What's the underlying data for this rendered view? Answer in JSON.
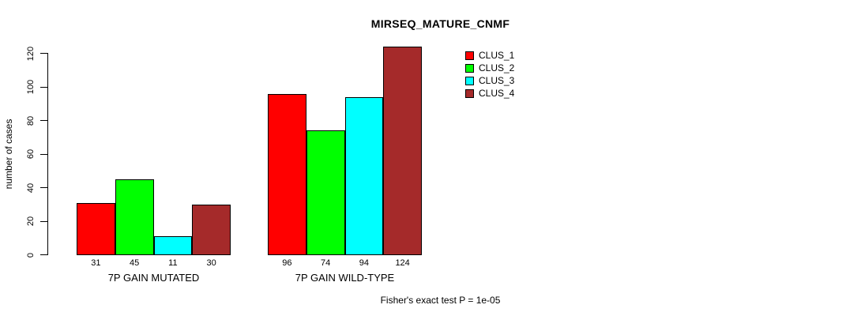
{
  "chart_data": {
    "type": "bar",
    "title": "MIRSEQ_MATURE_CNMF",
    "ylabel": "number of cases",
    "xlabel": "",
    "ylim": [
      0,
      120
    ],
    "yticks": [
      0,
      20,
      40,
      60,
      80,
      100,
      120
    ],
    "grid": false,
    "legend_position": "top-right-inside",
    "categories": [
      "7P GAIN MUTATED",
      "7P GAIN WILD-TYPE"
    ],
    "series": [
      {
        "name": "CLUS_1",
        "color": "#FF0000",
        "values": [
          31,
          96
        ]
      },
      {
        "name": "CLUS_2",
        "color": "#00FF00",
        "values": [
          45,
          74
        ]
      },
      {
        "name": "CLUS_3",
        "color": "#00FFFF",
        "values": [
          11,
          94
        ]
      },
      {
        "name": "CLUS_4",
        "color": "#A52A2A",
        "values": [
          30,
          124
        ]
      }
    ],
    "show_value_labels_below_bars": true,
    "annotation": "Fisher's exact test P = 1e-05"
  }
}
